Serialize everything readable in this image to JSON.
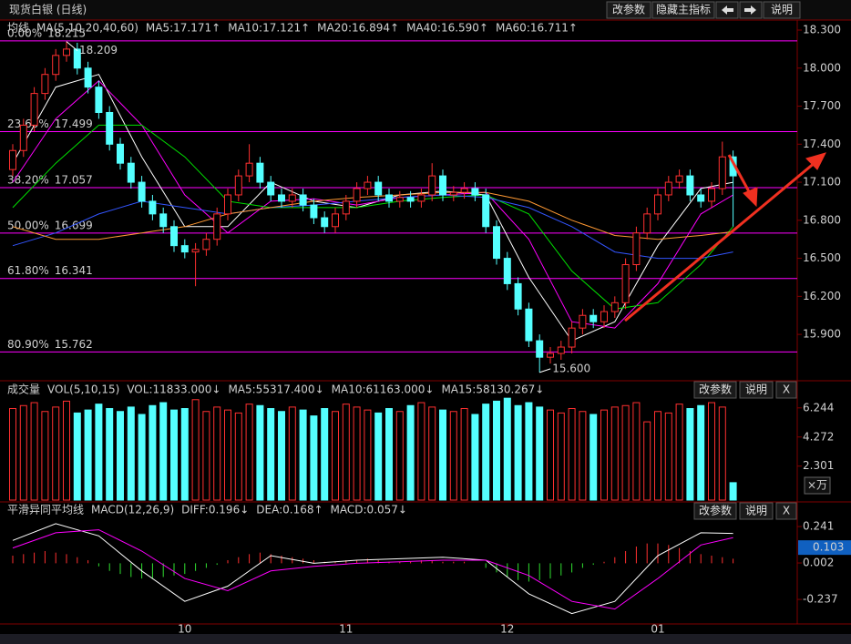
{
  "title": "现货白银 (日线)",
  "toolbar": [
    "改参数",
    "隐藏主指标",
    "说明"
  ],
  "months": [
    {
      "index": 16,
      "label": "10"
    },
    {
      "index": 31,
      "label": "11"
    },
    {
      "index": 46,
      "label": "12"
    },
    {
      "index": 60,
      "label": "01"
    }
  ],
  "chart_data": [
    {
      "type": "candlestick",
      "name": "均线",
      "params": "MA(5,10,20,40,60)",
      "up_color": "#ff3030",
      "down_color": "#54ffff",
      "open": [
        17.2,
        17.35,
        17.55,
        17.8,
        17.95,
        18.1,
        18.15,
        18.0,
        17.85,
        17.65,
        17.4,
        17.25,
        17.1,
        16.95,
        16.85,
        16.75,
        16.6,
        16.55,
        16.57,
        16.65,
        16.85,
        17.0,
        17.15,
        17.25,
        17.1,
        17.0,
        16.95,
        17.0,
        16.92,
        16.82,
        16.75,
        16.85,
        16.95,
        17.05,
        17.1,
        17.0,
        16.95,
        16.98,
        16.95,
        17.0,
        17.15,
        17.0,
        17.02,
        17.05,
        17.0,
        16.75,
        16.5,
        16.3,
        16.1,
        15.85,
        15.72,
        15.75,
        15.8,
        15.95,
        16.05,
        16.0,
        16.08,
        16.15,
        16.45,
        16.7,
        16.85,
        17.0,
        17.1,
        17.15,
        17.0,
        16.95,
        17.05,
        17.3
      ],
      "high": [
        17.4,
        17.6,
        17.85,
        18.0,
        18.15,
        18.209,
        18.2,
        18.05,
        17.9,
        17.7,
        17.45,
        17.3,
        17.15,
        17.0,
        16.9,
        16.8,
        16.65,
        16.62,
        16.7,
        16.9,
        17.05,
        17.2,
        17.4,
        17.3,
        17.15,
        17.05,
        17.05,
        17.05,
        16.97,
        16.87,
        16.9,
        17.0,
        17.1,
        17.15,
        17.15,
        17.05,
        17.03,
        17.03,
        17.05,
        17.25,
        17.2,
        17.07,
        17.1,
        17.1,
        17.05,
        16.8,
        16.55,
        16.35,
        16.15,
        15.9,
        15.8,
        15.85,
        16.0,
        16.1,
        16.1,
        16.13,
        16.2,
        16.5,
        16.75,
        16.9,
        17.05,
        17.15,
        17.2,
        17.2,
        17.05,
        17.1,
        17.42,
        17.35
      ],
      "low": [
        17.15,
        17.3,
        17.5,
        17.75,
        17.9,
        18.05,
        17.95,
        17.8,
        17.6,
        17.35,
        17.2,
        17.05,
        16.9,
        16.8,
        16.7,
        16.55,
        16.5,
        16.28,
        16.52,
        16.6,
        16.8,
        16.95,
        17.1,
        17.05,
        16.95,
        16.9,
        16.9,
        16.87,
        16.77,
        16.7,
        16.7,
        16.8,
        16.9,
        17.0,
        16.95,
        16.9,
        16.9,
        16.9,
        16.9,
        16.95,
        16.95,
        16.95,
        16.97,
        16.95,
        16.7,
        16.45,
        16.25,
        16.05,
        15.8,
        15.6,
        15.67,
        15.7,
        15.75,
        15.9,
        15.95,
        15.95,
        16.03,
        16.1,
        16.4,
        16.65,
        16.8,
        16.95,
        17.05,
        16.95,
        16.9,
        16.9,
        17.0,
        16.75
      ],
      "close": [
        17.35,
        17.55,
        17.8,
        17.95,
        18.1,
        18.15,
        18.0,
        17.85,
        17.65,
        17.4,
        17.25,
        17.1,
        16.95,
        16.85,
        16.75,
        16.6,
        16.55,
        16.57,
        16.65,
        16.85,
        17.0,
        17.15,
        17.25,
        17.1,
        17.0,
        16.95,
        17.0,
        16.92,
        16.82,
        16.75,
        16.85,
        16.95,
        17.05,
        17.1,
        17.0,
        16.95,
        16.98,
        16.95,
        17.0,
        17.15,
        17.0,
        17.02,
        17.05,
        17.0,
        16.75,
        16.5,
        16.3,
        16.1,
        15.85,
        15.72,
        15.75,
        15.8,
        15.95,
        16.05,
        16.0,
        16.08,
        16.15,
        16.45,
        16.7,
        16.85,
        17.0,
        17.1,
        17.15,
        17.0,
        16.95,
        17.05,
        17.3,
        17.15
      ],
      "ma_index": [
        0,
        4,
        8,
        12,
        16,
        20,
        24,
        28,
        32,
        36,
        40,
        44,
        48,
        52,
        56,
        60,
        64,
        67
      ],
      "series": [
        {
          "label": "MA5:17.171↑",
          "color": "#ffffff",
          "values": [
            17.25,
            17.85,
            17.95,
            17.3,
            16.75,
            16.75,
            17.1,
            16.95,
            16.9,
            17.0,
            17.03,
            17.0,
            16.35,
            15.85,
            16.0,
            16.6,
            17.05,
            17.1
          ]
        },
        {
          "label": "MA10:17.121↑",
          "color": "#ff00ff",
          "values": [
            17.1,
            17.6,
            17.9,
            17.55,
            17.0,
            16.7,
            16.95,
            16.97,
            16.92,
            16.98,
            17.0,
            17.02,
            16.65,
            16.0,
            15.95,
            16.3,
            16.85,
            17.0
          ]
        },
        {
          "label": "MA20:16.894↑",
          "color": "#00e000",
          "values": [
            16.9,
            17.25,
            17.55,
            17.55,
            17.3,
            16.95,
            16.9,
            16.9,
            16.9,
            16.95,
            16.98,
            17.0,
            16.85,
            16.4,
            16.1,
            16.15,
            16.45,
            16.75
          ]
        },
        {
          "label": "MA40:16.590↑",
          "color": "#3355ff",
          "values": [
            16.6,
            16.7,
            16.85,
            16.95,
            16.9,
            16.85,
            16.9,
            16.92,
            16.95,
            16.98,
            17.0,
            16.98,
            16.9,
            16.75,
            16.55,
            16.5,
            16.5,
            16.55
          ]
        },
        {
          "label": "MA60:16.711↑",
          "color": "#ff9933",
          "values": [
            16.75,
            16.65,
            16.65,
            16.7,
            16.75,
            16.85,
            16.9,
            16.95,
            16.98,
            17.0,
            17.02,
            17.02,
            16.95,
            16.8,
            16.68,
            16.65,
            16.68,
            16.71
          ]
        }
      ],
      "ylim": [
        15.556,
        18.379
      ],
      "yticks": [
        {
          "value": 18.3,
          "label": "18.300"
        },
        {
          "value": 18.0,
          "label": "18.000"
        },
        {
          "value": 17.7,
          "label": "17.700"
        },
        {
          "value": 17.4,
          "label": "17.400"
        },
        {
          "value": 17.1,
          "label": "17.100"
        },
        {
          "value": 16.8,
          "label": "16.800"
        },
        {
          "value": 16.5,
          "label": "16.500"
        },
        {
          "value": 16.2,
          "label": "16.200"
        },
        {
          "value": 15.9,
          "label": "15.900"
        }
      ],
      "fib_color": "#ff00ff",
      "fib_levels": [
        {
          "label": "0.00%",
          "value": 18.215
        },
        {
          "label": "23.60%",
          "value": 17.499
        },
        {
          "label": "38.20%",
          "value": 17.057
        },
        {
          "label": "50.00%",
          "value": 16.699
        },
        {
          "label": "61.80%",
          "value": 16.341
        },
        {
          "label": "80.90%",
          "value": 15.762
        }
      ],
      "annotations": [
        {
          "index": 5,
          "value": 18.209,
          "label": "18.209"
        },
        {
          "index": 49,
          "value": 15.6,
          "label": "15.600"
        }
      ]
    },
    {
      "type": "volume",
      "name": "成交量",
      "params": "VOL(5,10,15)",
      "legend": [
        {
          "label": "VOL:11833.000↓",
          "color": "#ffffff"
        },
        {
          "label": "MA5:55317.400↓",
          "color": "#ff00ff"
        },
        {
          "label": "MA10:61163.000↓",
          "color": "#00e000"
        },
        {
          "label": "MA15:58130.267↓",
          "color": "#3355ff"
        }
      ],
      "values": [
        6.2,
        6.4,
        6.6,
        6.0,
        6.3,
        6.7,
        5.9,
        6.1,
        6.5,
        6.2,
        6.0,
        6.3,
        5.8,
        6.4,
        6.6,
        6.1,
        6.2,
        6.8,
        6.0,
        6.3,
        6.1,
        5.9,
        6.5,
        6.4,
        6.2,
        6.0,
        6.3,
        6.1,
        5.7,
        6.2,
        6.0,
        6.5,
        6.3,
        6.1,
        5.9,
        6.2,
        6.0,
        6.4,
        6.6,
        6.3,
        6.1,
        6.0,
        6.2,
        5.8,
        6.5,
        6.7,
        6.9,
        6.4,
        6.6,
        6.3,
        6.1,
        5.9,
        6.2,
        6.0,
        5.8,
        6.1,
        6.3,
        6.4,
        6.6,
        5.3,
        6.0,
        5.9,
        6.5,
        6.2,
        6.4,
        6.6,
        6.3,
        1.18
      ],
      "ylim": [
        0,
        6.91
      ],
      "yticks": [
        2.301,
        4.272,
        6.244
      ],
      "unit": "×万",
      "buttons": [
        "改参数",
        "说明",
        "X"
      ]
    },
    {
      "type": "macd",
      "name": "平滑异同平均线",
      "params": "MACD(12,26,9)",
      "legend": [
        {
          "label": "DIFF:0.196↓",
          "color": "#ffffff"
        },
        {
          "label": "DEA:0.168↑",
          "color": "#ff00ff"
        },
        {
          "label": "MACD:0.057↓",
          "color": "#00e000"
        }
      ],
      "histogram": [
        0.05,
        0.06,
        0.07,
        0.08,
        0.07,
        0.06,
        0.04,
        0.02,
        -0.02,
        -0.05,
        -0.07,
        -0.09,
        -0.1,
        -0.1,
        -0.09,
        -0.08,
        -0.07,
        -0.05,
        -0.03,
        -0.01,
        0.02,
        0.04,
        0.06,
        0.07,
        0.06,
        0.05,
        0.04,
        0.03,
        0.02,
        0.01,
        0.01,
        0.02,
        0.02,
        0.03,
        0.02,
        0.01,
        0.01,
        0.01,
        0.02,
        0.02,
        0.01,
        0.01,
        0.01,
        0.0,
        -0.03,
        -0.06,
        -0.09,
        -0.11,
        -0.12,
        -0.11,
        -0.1,
        -0.08,
        -0.06,
        -0.03,
        -0.01,
        0.01,
        0.04,
        0.08,
        0.11,
        0.13,
        0.13,
        0.12,
        0.1,
        0.08,
        0.06,
        0.05,
        0.04,
        0.03
      ],
      "pos_color": "#ff3030",
      "neg_color": "#30e030",
      "index": [
        0,
        4,
        8,
        12,
        16,
        20,
        24,
        28,
        32,
        36,
        40,
        44,
        48,
        52,
        56,
        60,
        64,
        67
      ],
      "series": [
        {
          "color": "#ffffff",
          "values": [
            0.15,
            0.26,
            0.18,
            -0.05,
            -0.25,
            -0.15,
            0.05,
            0.0,
            0.02,
            0.03,
            0.04,
            0.02,
            -0.2,
            -0.33,
            -0.25,
            0.05,
            0.2,
            0.196
          ]
        },
        {
          "color": "#ff00ff",
          "values": [
            0.1,
            0.2,
            0.22,
            0.08,
            -0.1,
            -0.18,
            -0.05,
            -0.02,
            0.0,
            0.01,
            0.02,
            0.02,
            -0.08,
            -0.25,
            -0.3,
            -0.1,
            0.12,
            0.168
          ]
        }
      ],
      "ylim": [
        -0.392,
        0.301
      ],
      "yticks": [
        0.241,
        0.002,
        -0.237
      ],
      "marker": 0.103,
      "buttons": [
        "改参数",
        "说明",
        "X"
      ]
    }
  ]
}
